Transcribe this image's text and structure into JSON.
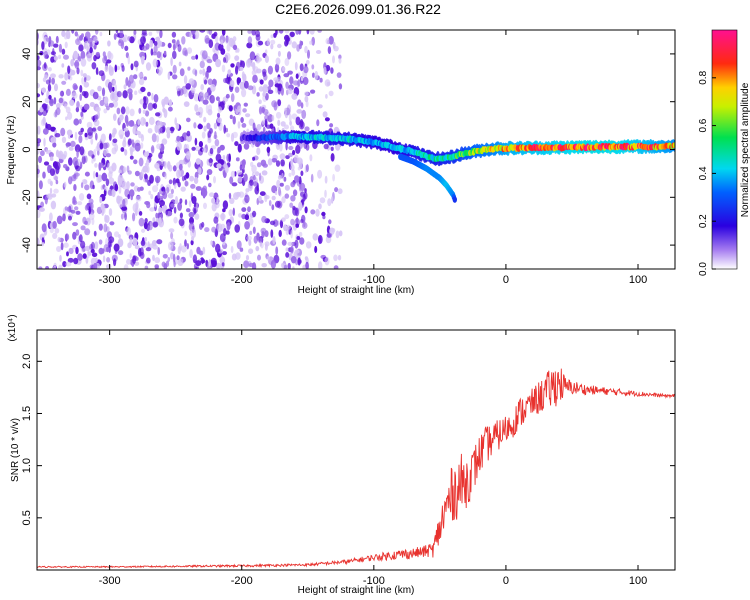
{
  "title": "C2E6.2026.099.01.36.R22",
  "colors": {
    "snr_line": "#e8322e",
    "spectrogram_speckle": "#6a1fd6",
    "axis": "#000000"
  },
  "colorbar": {
    "label": "Normalized spectral amplitude",
    "range": [
      0.0,
      1.0
    ],
    "ticks": [
      "0.0",
      "0.2",
      "0.4",
      "0.6",
      "0.8"
    ],
    "tick_values": [
      0.0,
      0.2,
      0.4,
      0.6,
      0.8
    ],
    "colormap": "rainbow (purple-blue-cyan-green-yellow-red-magenta)"
  },
  "chart_data": [
    {
      "type": "heatmap",
      "title": "C2E6.2026.099.01.36.R22",
      "xlabel": "Height of straight line (km)",
      "ylabel": "Frequency (Hz)",
      "xlim": [
        -355,
        128
      ],
      "ylim": [
        -50,
        50
      ],
      "xticks": [
        -300,
        -200,
        -100,
        0,
        100
      ],
      "xtick_labels": [
        "-300",
        "-200",
        "-100",
        "0",
        "100"
      ],
      "yticks": [
        -40,
        -20,
        0,
        20,
        40
      ],
      "ytick_labels": [
        "-40",
        "-20",
        "0",
        "20",
        "40"
      ],
      "noise_region": {
        "x_from": -355,
        "x_to": -140,
        "note": "scattered low-amplitude speckle across all frequencies"
      },
      "ridge": {
        "x": [
          -200,
          -180,
          -160,
          -140,
          -120,
          -100,
          -85,
          -70,
          -60,
          -50,
          -40,
          -35,
          -25,
          -15,
          -5,
          0,
          20,
          40,
          60,
          80,
          100,
          128
        ],
        "y": [
          5,
          5,
          5.5,
          5,
          4.5,
          3,
          1,
          -1,
          -3,
          -4,
          -3,
          -2,
          -1,
          0,
          0.5,
          0.5,
          0.7,
          0.8,
          1,
          1.2,
          1.2,
          1.3
        ],
        "amplitude": [
          0.15,
          0.3,
          0.4,
          0.45,
          0.45,
          0.4,
          0.4,
          0.45,
          0.5,
          0.5,
          0.55,
          0.6,
          0.7,
          0.75,
          0.8,
          0.85,
          0.9,
          0.92,
          0.95,
          0.95,
          0.9,
          0.8
        ]
      },
      "secondary_branch": {
        "x": [
          -80,
          -70,
          -60,
          -50,
          -45,
          -40,
          -38
        ],
        "y": [
          -3,
          -5,
          -8,
          -12,
          -15,
          -19,
          -22
        ],
        "amplitude": [
          0.3,
          0.3,
          0.35,
          0.35,
          0.4,
          0.35,
          0.2
        ]
      }
    },
    {
      "type": "line",
      "xlabel": "Height of straight line (km)",
      "ylabel": "SNR (10 * v/v)",
      "y_multiplier": "(x10⁴)",
      "xlim": [
        -355,
        128
      ],
      "ylim": [
        0,
        23000
      ],
      "xticks": [
        -300,
        -200,
        -100,
        0,
        100
      ],
      "xtick_labels": [
        "-300",
        "-200",
        "-100",
        "0",
        "100"
      ],
      "yticks": [
        5000,
        10000,
        15000,
        20000
      ],
      "ytick_labels": [
        "0.5",
        "1.0",
        "1.5",
        "2.0"
      ],
      "series": [
        {
          "name": "SNR",
          "x": [
            -355,
            -300,
            -250,
            -200,
            -150,
            -120,
            -100,
            -80,
            -70,
            -60,
            -55,
            -50,
            -45,
            -40,
            -35,
            -30,
            -25,
            -20,
            -15,
            -10,
            -5,
            0,
            5,
            10,
            15,
            20,
            25,
            30,
            35,
            40,
            45,
            50,
            60,
            70,
            80,
            90,
            100,
            110,
            120,
            128
          ],
          "y": [
            300,
            300,
            350,
            400,
            500,
            800,
            1200,
            1500,
            1600,
            1800,
            2000,
            4000,
            6000,
            7500,
            8000,
            8500,
            9500,
            11000,
            12000,
            12500,
            13000,
            13500,
            14000,
            15000,
            15500,
            16000,
            16500,
            17000,
            17500,
            18000,
            17500,
            17500,
            17300,
            17200,
            17100,
            17000,
            16900,
            16800,
            16700,
            16700
          ],
          "noise": [
            60,
            60,
            80,
            100,
            120,
            200,
            300,
            500,
            500,
            600,
            800,
            1800,
            2500,
            2800,
            3200,
            2600,
            2200,
            2000,
            1800,
            1600,
            1500,
            1400,
            1400,
            1500,
            1500,
            1400,
            1600,
            1800,
            2000,
            2200,
            1000,
            700,
            500,
            400,
            350,
            300,
            250,
            200,
            150,
            150
          ]
        }
      ]
    }
  ]
}
